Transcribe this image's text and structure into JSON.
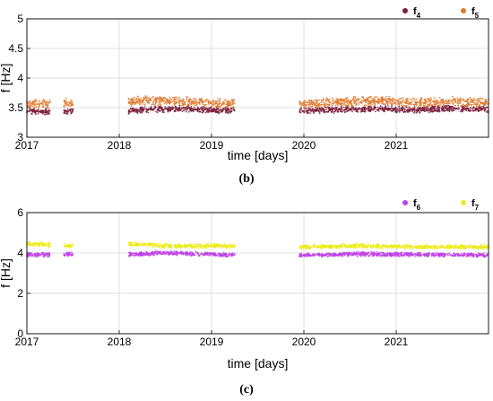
{
  "captions": {
    "b": "(b)",
    "c": "(c)"
  },
  "chart_data": [
    {
      "type": "scatter",
      "id": "b",
      "xlabel": "time [days]",
      "ylabel": "f [Hz]",
      "xlim": [
        2017.0,
        2022.0
      ],
      "ylim": [
        3.0,
        5.0
      ],
      "xticks": [
        2017,
        2018,
        2019,
        2020,
        2021
      ],
      "xtick_labels": [
        "2017",
        "2018",
        "2019",
        "2020",
        "2021"
      ],
      "yticks": [
        3,
        3.5,
        4,
        4.5,
        5
      ],
      "ytick_labels": [
        "3",
        "3.5",
        "4",
        "4.5",
        "5"
      ],
      "grid": true,
      "legend": "top-right",
      "series": [
        {
          "legend_main": "f",
          "legend_sub": "4",
          "color": "#7b1e3c",
          "segments": [
            [
              2017.0,
              2017.25
            ],
            [
              2017.4,
              2017.5
            ],
            [
              2018.1,
              2019.25
            ],
            [
              2019.95,
              2022.0
            ]
          ],
          "baseline": [
            [
              2017.0,
              3.44
            ],
            [
              2017.25,
              3.43
            ],
            [
              2017.4,
              3.45
            ],
            [
              2017.5,
              3.44
            ],
            [
              2018.1,
              3.45
            ],
            [
              2018.3,
              3.47
            ],
            [
              2018.7,
              3.48
            ],
            [
              2019.0,
              3.46
            ],
            [
              2019.25,
              3.45
            ],
            [
              2019.95,
              3.45
            ],
            [
              2020.5,
              3.47
            ],
            [
              2020.9,
              3.48
            ],
            [
              2021.2,
              3.46
            ],
            [
              2021.6,
              3.49
            ],
            [
              2022.0,
              3.47
            ]
          ],
          "spread": 0.06
        },
        {
          "legend_main": "f",
          "legend_sub": "5",
          "color": "#e07a2e",
          "segments": [
            [
              2017.0,
              2017.25
            ],
            [
              2017.4,
              2017.5
            ],
            [
              2018.1,
              2019.25
            ],
            [
              2019.95,
              2022.0
            ]
          ],
          "baseline": [
            [
              2017.0,
              3.57
            ],
            [
              2017.25,
              3.56
            ],
            [
              2017.4,
              3.58
            ],
            [
              2017.5,
              3.57
            ],
            [
              2018.1,
              3.6
            ],
            [
              2018.3,
              3.62
            ],
            [
              2018.7,
              3.6
            ],
            [
              2019.0,
              3.58
            ],
            [
              2019.25,
              3.57
            ],
            [
              2019.95,
              3.56
            ],
            [
              2020.5,
              3.6
            ],
            [
              2020.9,
              3.62
            ],
            [
              2021.2,
              3.58
            ],
            [
              2021.6,
              3.6
            ],
            [
              2022.0,
              3.58
            ]
          ],
          "spread": 0.09
        }
      ]
    },
    {
      "type": "scatter",
      "id": "c",
      "xlabel": "time [days]",
      "ylabel": "f [Hz]",
      "xlim": [
        2017.0,
        2022.0
      ],
      "ylim": [
        0,
        6
      ],
      "xticks": [
        2017,
        2018,
        2019,
        2020,
        2021
      ],
      "xtick_labels": [
        "2017",
        "2018",
        "2019",
        "2020",
        "2021"
      ],
      "yticks": [
        0,
        2,
        4,
        6
      ],
      "ytick_labels": [
        "0",
        "2",
        "4",
        "6"
      ],
      "grid": true,
      "legend": "top-right",
      "series": [
        {
          "legend_main": "f",
          "legend_sub": "6",
          "color": "#c040e8",
          "segments": [
            [
              2017.0,
              2017.25
            ],
            [
              2017.4,
              2017.5
            ],
            [
              2018.1,
              2019.25
            ],
            [
              2019.95,
              2022.0
            ]
          ],
          "baseline": [
            [
              2017.0,
              3.9
            ],
            [
              2017.5,
              3.95
            ],
            [
              2018.1,
              3.92
            ],
            [
              2018.5,
              4.0
            ],
            [
              2019.25,
              3.9
            ],
            [
              2019.95,
              3.88
            ],
            [
              2020.6,
              3.95
            ],
            [
              2021.3,
              3.92
            ],
            [
              2022.0,
              3.9
            ]
          ],
          "spread": 0.12
        },
        {
          "legend_main": "f",
          "legend_sub": "7",
          "color": "#ecec1a",
          "segments": [
            [
              2017.0,
              2017.25
            ],
            [
              2017.4,
              2017.5
            ],
            [
              2018.1,
              2019.25
            ],
            [
              2019.95,
              2022.0
            ]
          ],
          "baseline": [
            [
              2017.0,
              4.45
            ],
            [
              2017.5,
              4.35
            ],
            [
              2018.1,
              4.45
            ],
            [
              2018.5,
              4.35
            ],
            [
              2019.25,
              4.35
            ],
            [
              2019.95,
              4.3
            ],
            [
              2020.6,
              4.35
            ],
            [
              2021.3,
              4.3
            ],
            [
              2022.0,
              4.3
            ]
          ],
          "spread": 0.12
        }
      ]
    }
  ]
}
